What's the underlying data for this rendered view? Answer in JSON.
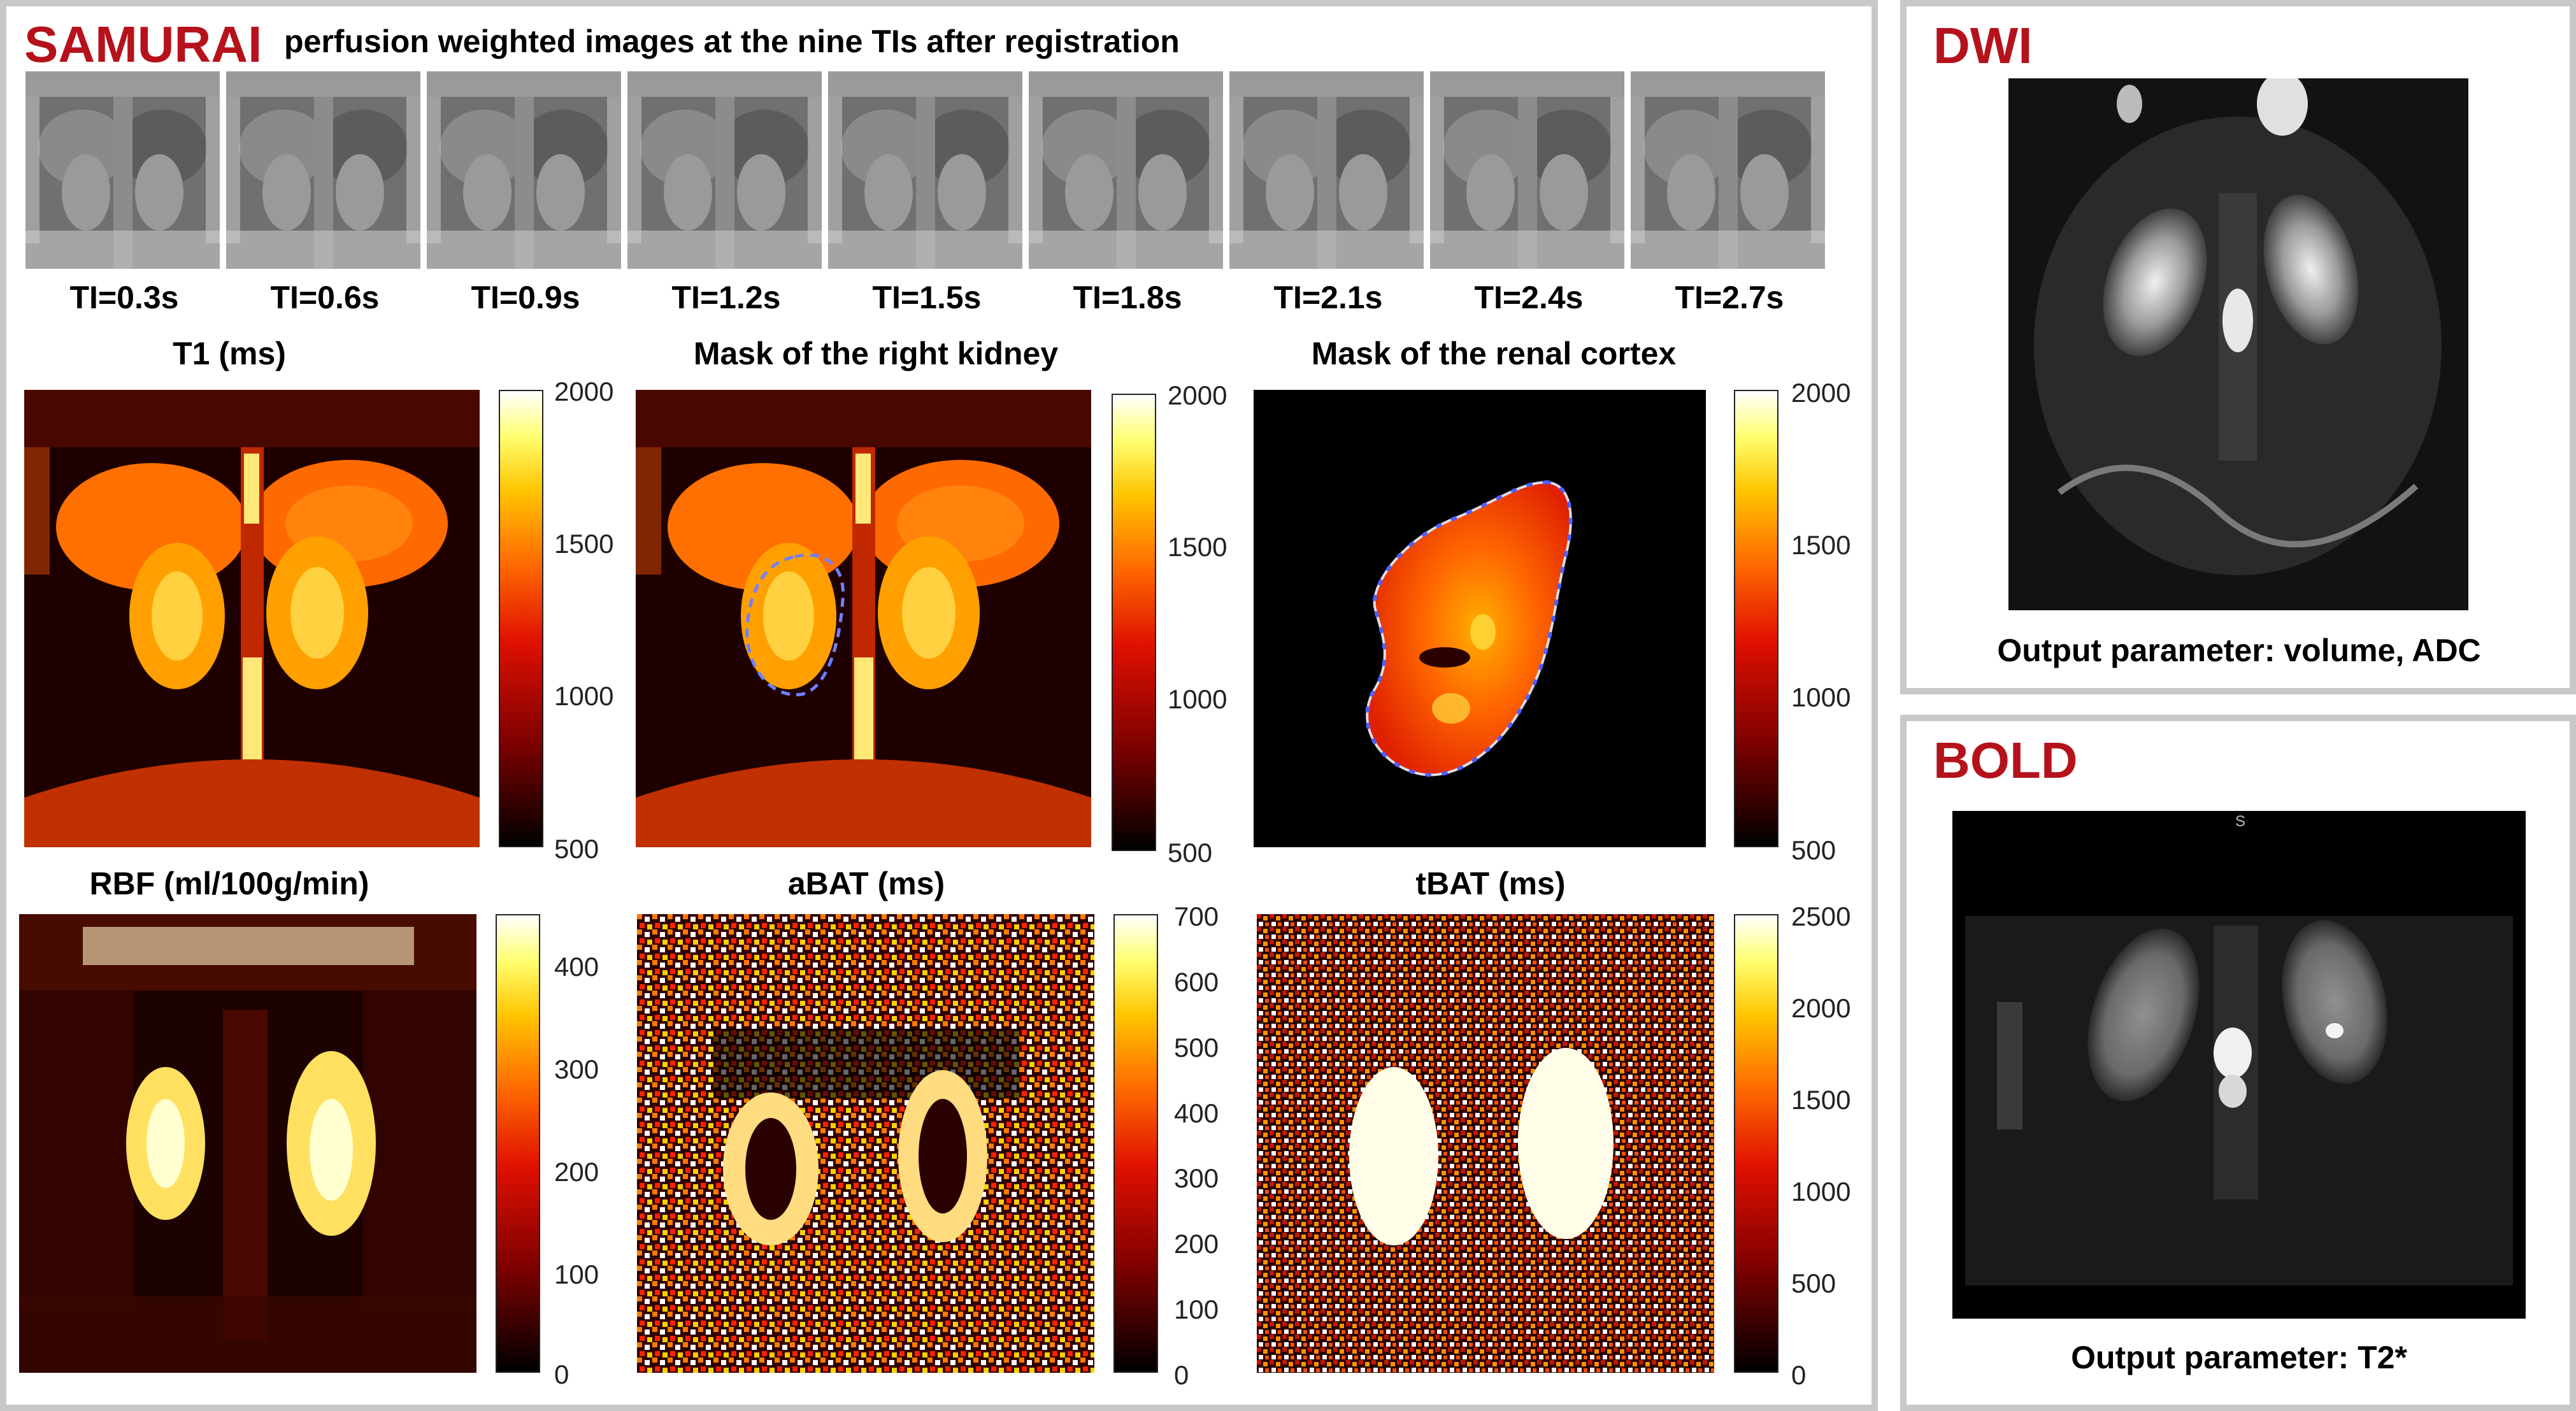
{
  "samurai": {
    "brand": "SAMURAI",
    "subtitle": "perfusion weighted images at the nine TIs after registration",
    "ti_labels": [
      "TI=0.3s",
      "TI=0.6s",
      "TI=0.9s",
      "TI=1.2s",
      "TI=1.5s",
      "TI=1.8s",
      "TI=2.1s",
      "TI=2.4s",
      "TI=2.7s"
    ],
    "maps": [
      {
        "title": "T1 (ms)",
        "ticks": [
          "2000",
          "1500",
          "1000",
          "500"
        ]
      },
      {
        "title": "Mask of the right kidney",
        "ticks": [
          "2000",
          "1500",
          "1000",
          "500"
        ]
      },
      {
        "title": "Mask of the renal cortex",
        "ticks": [
          "2000",
          "1500",
          "1000",
          "500"
        ]
      },
      {
        "title": "RBF (ml/100g/min)",
        "ticks": [
          "400",
          "300",
          "200",
          "100",
          "0"
        ]
      },
      {
        "title": "aBAT (ms)",
        "ticks": [
          "700",
          "600",
          "500",
          "400",
          "300",
          "200",
          "100",
          "0"
        ]
      },
      {
        "title": "tBAT (ms)",
        "ticks": [
          "2500",
          "2000",
          "1500",
          "1000",
          "500",
          "0"
        ]
      }
    ],
    "colormap": "hot"
  },
  "dwi": {
    "brand": "DWI",
    "output": "Output parameter: volume, ADC"
  },
  "bold": {
    "brand": "BOLD",
    "marker": "S",
    "output": "Output parameter: T2*"
  }
}
